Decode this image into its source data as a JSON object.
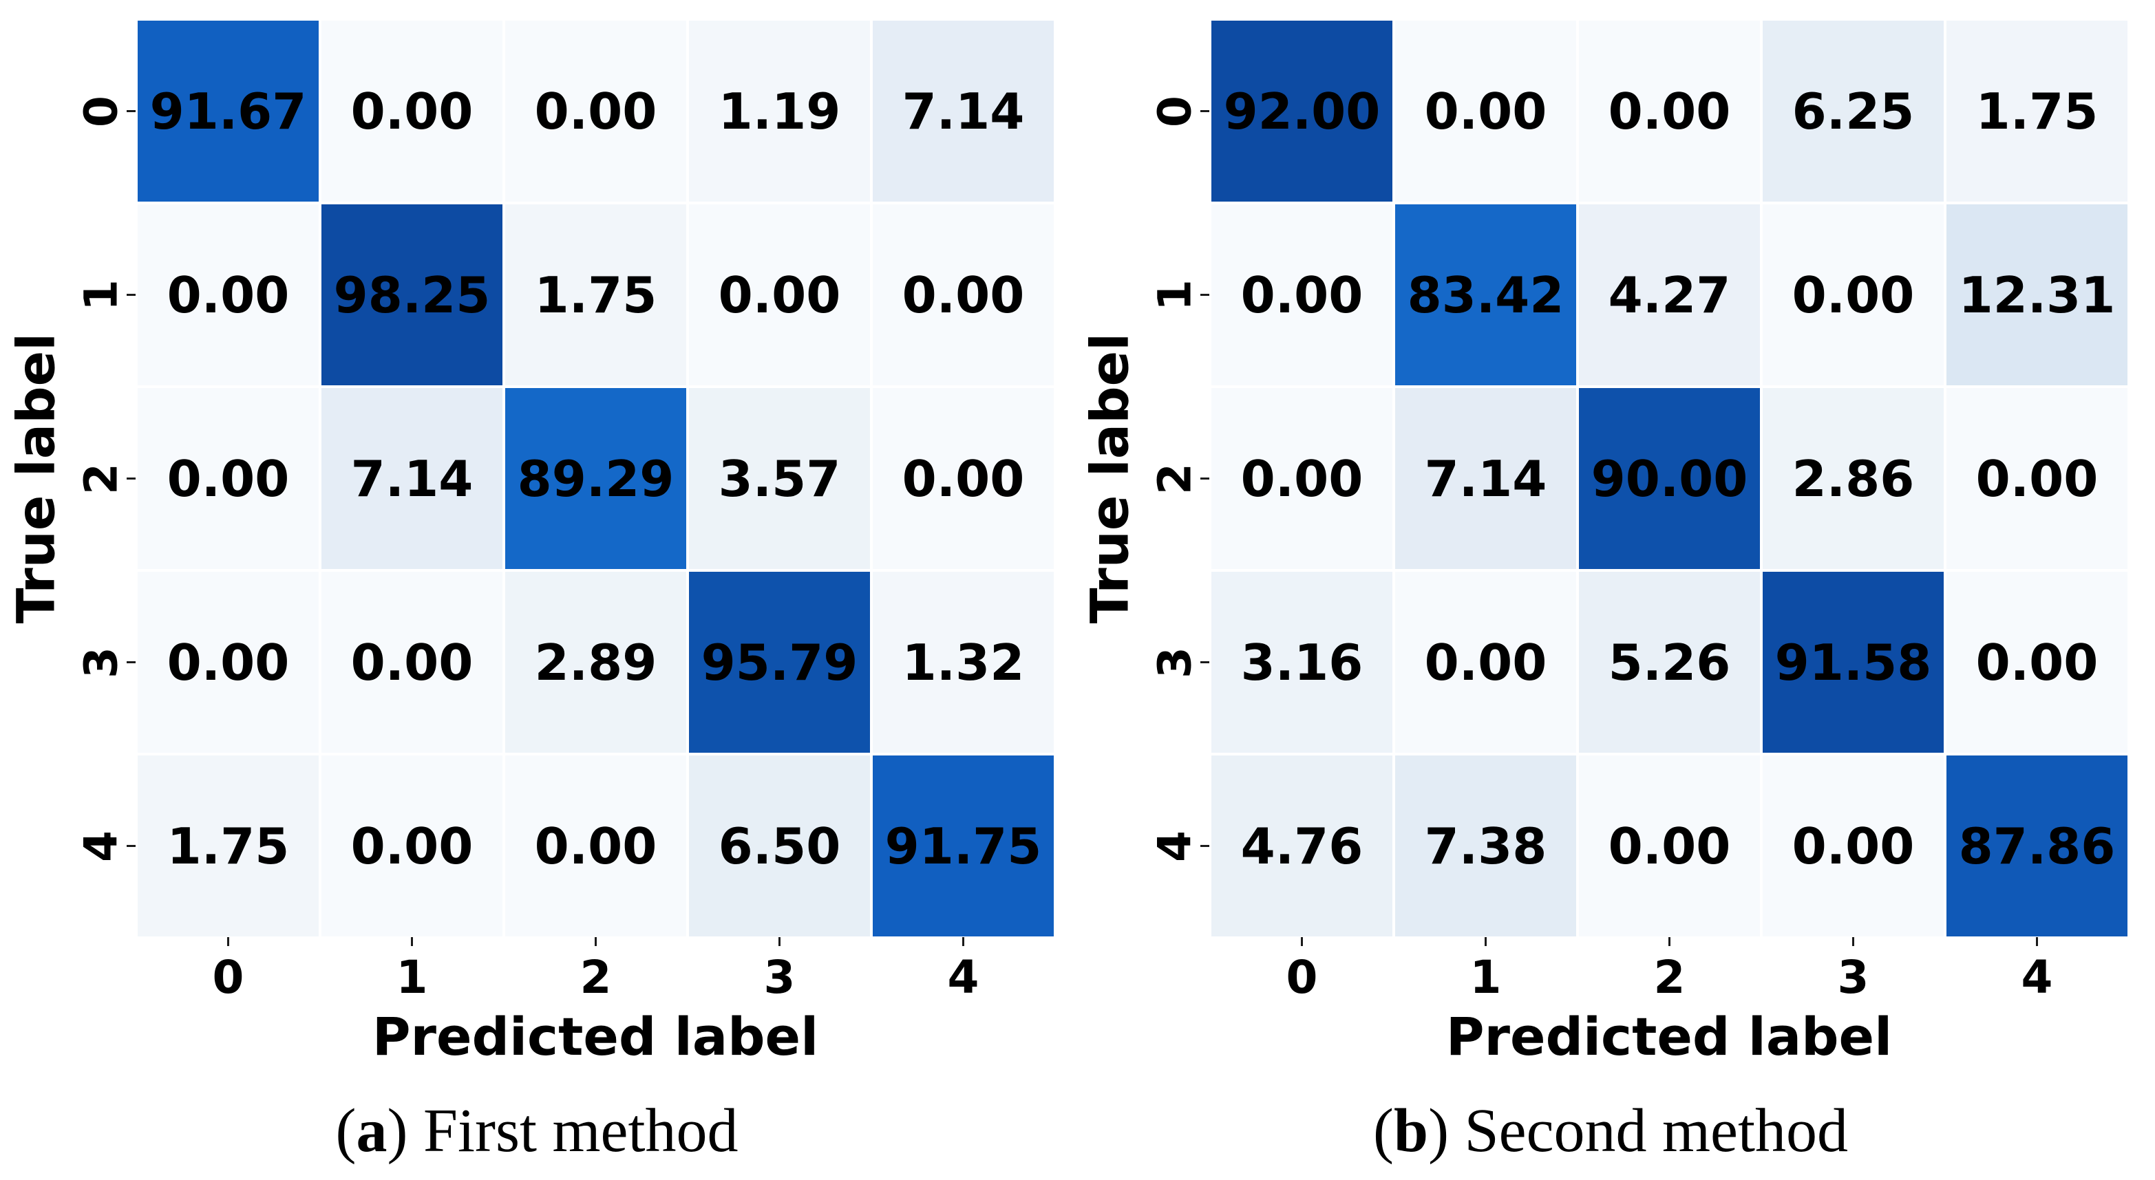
{
  "figure": {
    "background": "#ffffff",
    "description": "Two normalized confusion matrices shown side by side"
  },
  "style": {
    "cell_text_color": "#000000",
    "tick_mark_color": "#1a1a1a",
    "colormap_normalization": "per_matrix_max",
    "colormap_stops": [
      [
        0.0,
        "#f7fafd"
      ],
      [
        0.013,
        "#f3f7fb"
      ],
      [
        0.02,
        "#f1f5fa"
      ],
      [
        0.03,
        "#eef4f9"
      ],
      [
        0.055,
        "#e9f0f7"
      ],
      [
        0.07,
        "#e6eef6"
      ],
      [
        0.08,
        "#e3ecf5"
      ],
      [
        0.135,
        "#dbe7f3"
      ],
      [
        0.5,
        "#6aaad8"
      ],
      [
        0.905,
        "#1569c9"
      ],
      [
        0.935,
        "#115fc0"
      ],
      [
        0.955,
        "#1059b7"
      ],
      [
        0.975,
        "#0e52ac"
      ],
      [
        1.0,
        "#0d4ba3"
      ]
    ]
  },
  "chart_data": [
    {
      "type": "heatmap",
      "panel": "a",
      "caption": {
        "open": "(",
        "letter": "a",
        "close": ") ",
        "text": "First method"
      },
      "xlabel": "Predicted label",
      "ylabel": "True label",
      "xticklabels": [
        "0",
        "1",
        "2",
        "3",
        "4"
      ],
      "yticklabels": [
        "0",
        "1",
        "2",
        "3",
        "4"
      ],
      "value_format": "2dp",
      "matrix": [
        [
          91.67,
          0.0,
          0.0,
          1.19,
          7.14
        ],
        [
          0.0,
          98.25,
          1.75,
          0.0,
          0.0
        ],
        [
          0.0,
          7.14,
          89.29,
          3.57,
          0.0
        ],
        [
          0.0,
          0.0,
          2.89,
          95.79,
          1.32
        ],
        [
          1.75,
          0.0,
          0.0,
          6.5,
          91.75
        ]
      ]
    },
    {
      "type": "heatmap",
      "panel": "b",
      "caption": {
        "open": "(",
        "letter": "b",
        "close": ") ",
        "text": "Second method"
      },
      "xlabel": "Predicted label",
      "ylabel": "True label",
      "xticklabels": [
        "0",
        "1",
        "2",
        "3",
        "4"
      ],
      "yticklabels": [
        "0",
        "1",
        "2",
        "3",
        "4"
      ],
      "value_format": "2dp",
      "matrix": [
        [
          92.0,
          0.0,
          0.0,
          6.25,
          1.75
        ],
        [
          0.0,
          83.42,
          4.27,
          0.0,
          12.31
        ],
        [
          0.0,
          7.14,
          90.0,
          2.86,
          0.0
        ],
        [
          3.16,
          0.0,
          5.26,
          91.58,
          0.0
        ],
        [
          4.76,
          7.38,
          0.0,
          0.0,
          87.86
        ]
      ]
    }
  ]
}
